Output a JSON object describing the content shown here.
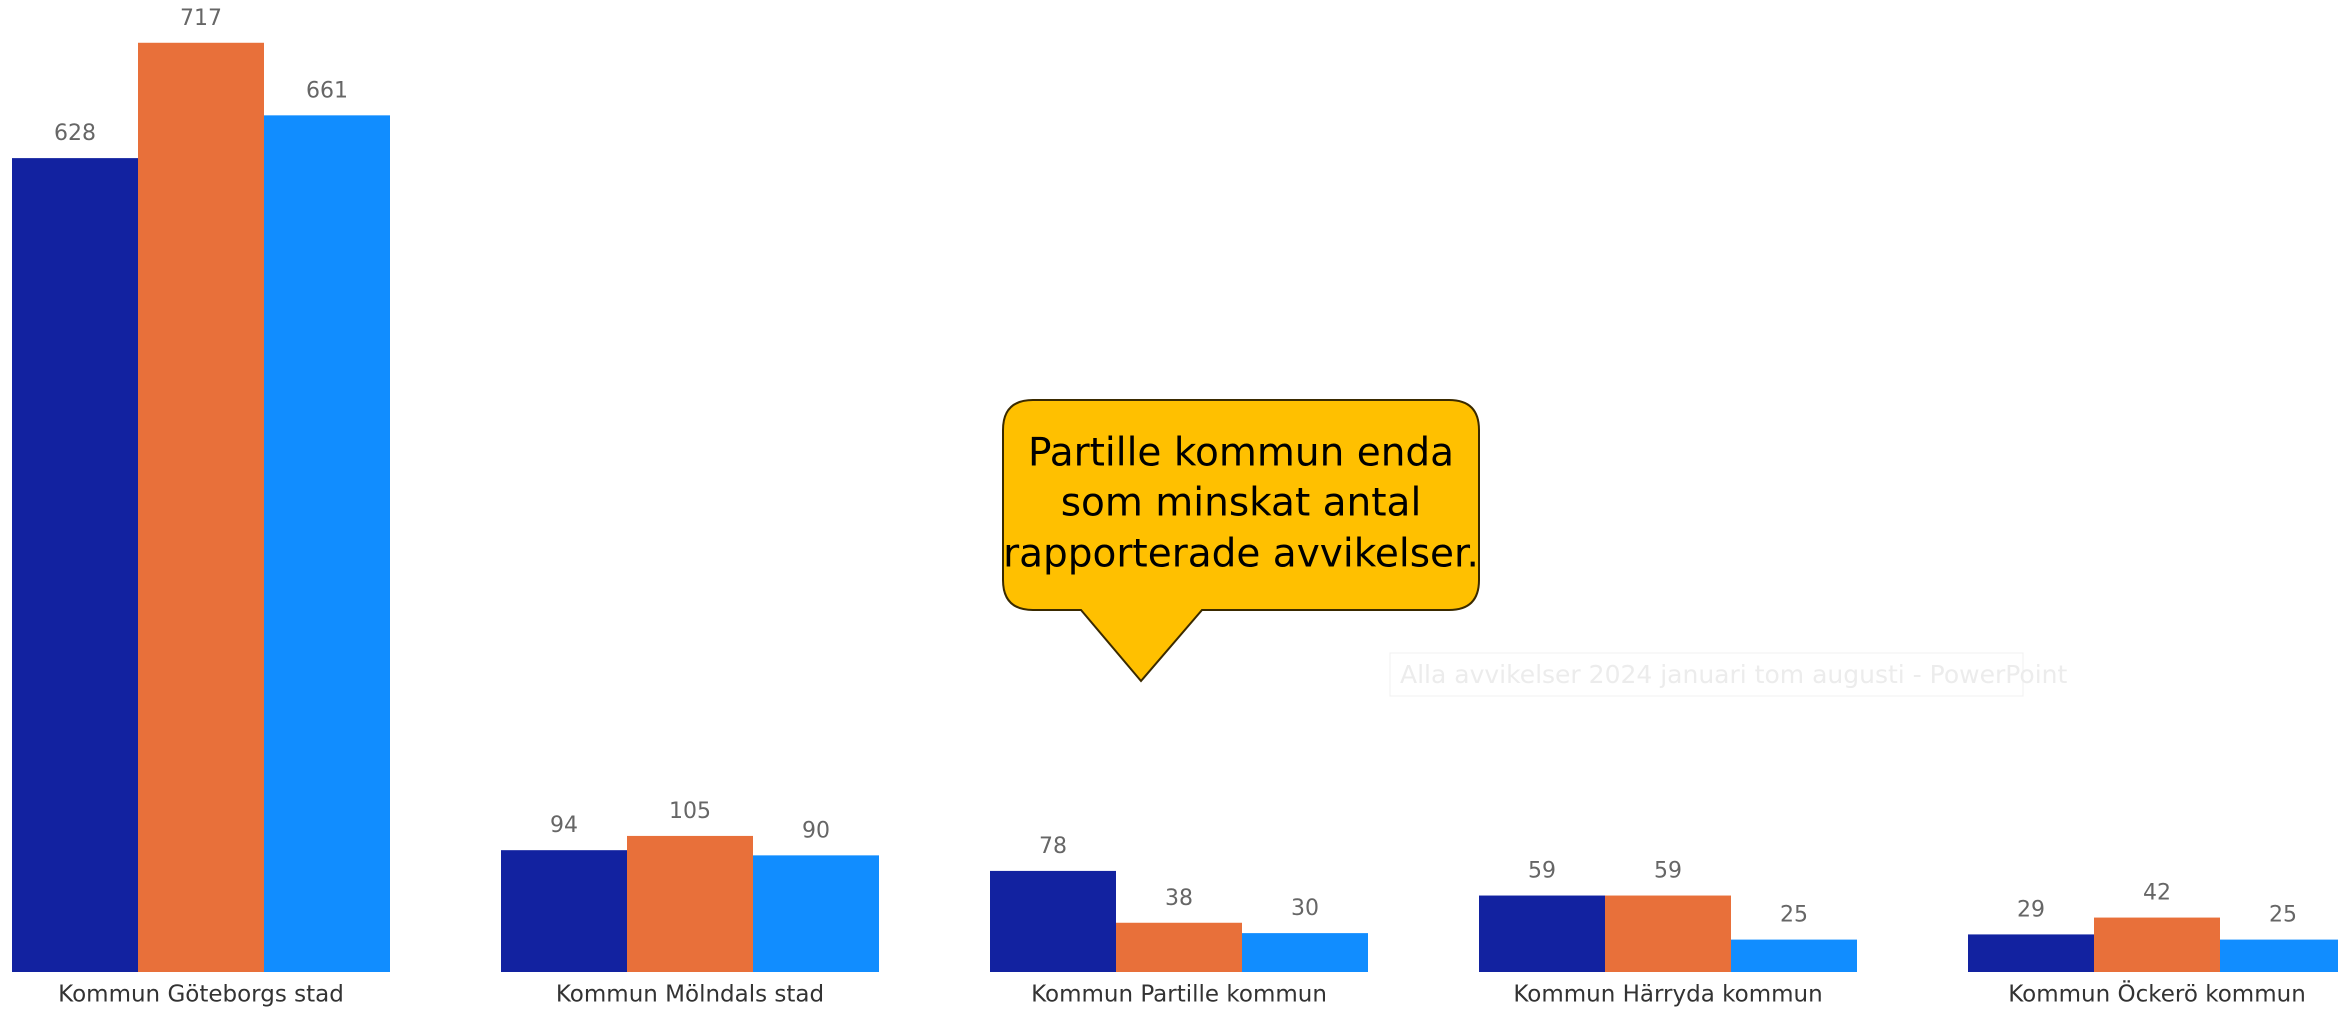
{
  "chart_data": {
    "type": "bar",
    "categories": [
      "Kommun Göteborgs stad",
      "Kommun Mölndals stad",
      "Kommun Partille kommun",
      "Kommun Härryda kommun",
      "Kommun Öckerö kommun"
    ],
    "series": [
      {
        "color": "#1222a0",
        "values": [
          628,
          94,
          78,
          59,
          29
        ]
      },
      {
        "color": "#e8703a",
        "values": [
          717,
          105,
          38,
          59,
          42
        ]
      },
      {
        "color": "#118dff",
        "values": [
          661,
          90,
          30,
          25,
          25
        ]
      }
    ],
    "ylim": [
      0,
      750
    ],
    "annotation": [
      "Partille kommun enda",
      "som minskat antal",
      "rapporterade avvikelser."
    ],
    "overlay_text": "Alla avvikelser 2024 januari tom augusti - PowerPoint"
  }
}
